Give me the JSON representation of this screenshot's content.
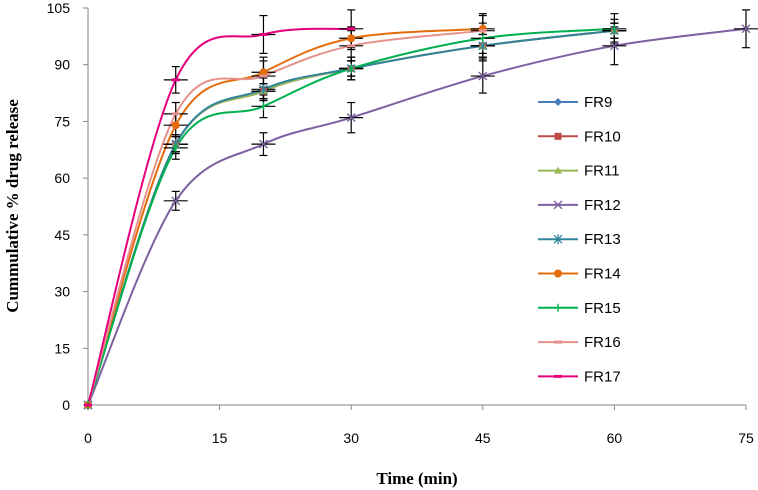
{
  "chart_data": {
    "type": "line",
    "xlabel": "Time (min)",
    "ylabel": "Cummulative % drug release",
    "xlim": [
      0,
      75
    ],
    "ylim": [
      0,
      105
    ],
    "xticks": [
      0,
      15,
      30,
      45,
      60,
      75
    ],
    "yticks": [
      0,
      15,
      30,
      45,
      60,
      75,
      90,
      105
    ],
    "grid": false,
    "legend_position": "right",
    "series": [
      {
        "name": "FR9",
        "color": "#4a7ebb",
        "marker": "diamond",
        "x": [
          0,
          10,
          20,
          30,
          45,
          60
        ],
        "y": [
          0,
          69,
          83,
          89,
          95,
          99
        ],
        "err": [
          0,
          2,
          2,
          2,
          3,
          2
        ]
      },
      {
        "name": "FR10",
        "color": "#be4b48",
        "marker": "square",
        "x": [
          0,
          10,
          20,
          30,
          45,
          60
        ],
        "y": [
          0,
          69,
          83,
          89,
          95,
          99
        ],
        "err": [
          0,
          2,
          2,
          2,
          3,
          2
        ]
      },
      {
        "name": "FR11",
        "color": "#98b954",
        "marker": "triangle",
        "x": [
          0,
          10,
          20,
          30,
          45,
          60
        ],
        "y": [
          0,
          69,
          83,
          89,
          95,
          99
        ],
        "err": [
          0,
          2,
          2,
          2,
          3,
          2
        ]
      },
      {
        "name": "FR12",
        "color": "#7d60a0",
        "marker": "x",
        "x": [
          0,
          10,
          20,
          30,
          45,
          60,
          75
        ],
        "y": [
          0,
          54,
          69,
          76,
          87,
          95,
          99.5
        ],
        "err": [
          0,
          2.5,
          3,
          4,
          4.5,
          5,
          5
        ]
      },
      {
        "name": "FR13",
        "color": "#31849b",
        "marker": "star",
        "x": [
          0,
          10,
          20,
          30,
          45,
          60
        ],
        "y": [
          0,
          69,
          83.5,
          89,
          95,
          99
        ],
        "err": [
          0,
          2.5,
          3,
          3,
          4,
          3
        ]
      },
      {
        "name": "FR14",
        "color": "#e46c0a",
        "marker": "circle",
        "x": [
          0,
          10,
          20,
          30,
          45
        ],
        "y": [
          0,
          74,
          88,
          97,
          99.5
        ],
        "err": [
          0,
          3,
          4,
          3,
          4
        ]
      },
      {
        "name": "FR15",
        "color": "#00b050",
        "marker": "plus",
        "x": [
          0,
          10,
          20,
          30,
          45,
          60
        ],
        "y": [
          0,
          68,
          79,
          89,
          97,
          99.5
        ],
        "err": [
          0,
          3,
          3,
          3,
          4,
          4
        ]
      },
      {
        "name": "FR16",
        "color": "#e6918c",
        "marker": "dash",
        "x": [
          0,
          10,
          20,
          30,
          45
        ],
        "y": [
          0,
          77,
          87,
          95,
          99
        ],
        "err": [
          0,
          3,
          4,
          4,
          4
        ]
      },
      {
        "name": "FR17",
        "color": "#e6007e",
        "marker": "dash",
        "x": [
          0,
          10,
          20,
          30
        ],
        "y": [
          0,
          86,
          98,
          99.5
        ],
        "err": [
          0,
          3.5,
          5,
          5
        ]
      }
    ]
  }
}
